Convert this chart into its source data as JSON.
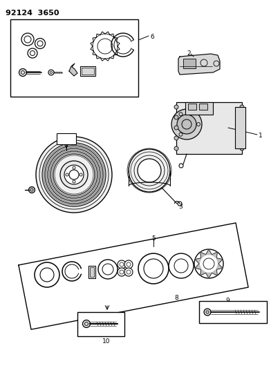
{
  "title": "92124  3650",
  "bg_color": "#ffffff",
  "line_color": "#000000",
  "fig_width": 4.06,
  "fig_height": 5.33,
  "dpi": 100
}
